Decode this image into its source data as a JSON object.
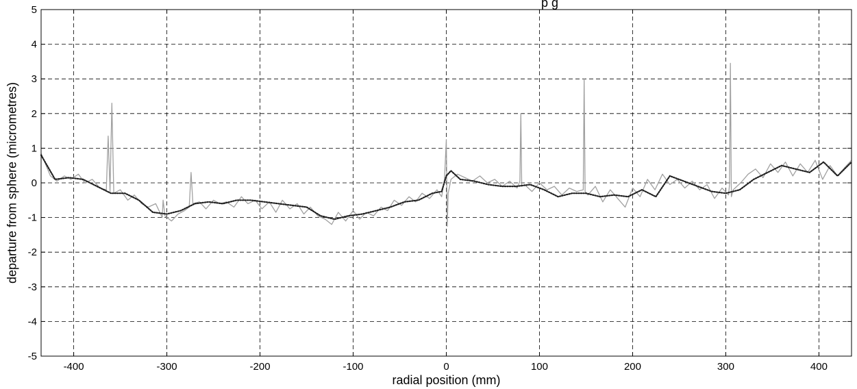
{
  "chart_data": {
    "type": "line",
    "title": "",
    "title_fragment": "p            g",
    "xlabel": "radial position (mm)",
    "ylabel": "departure from sphere (micrometres)",
    "xlim": [
      -435,
      435
    ],
    "ylim": [
      -5,
      5
    ],
    "xticks": [
      -400,
      -300,
      -200,
      -100,
      0,
      100,
      200,
      300,
      400
    ],
    "yticks": [
      -5,
      -4,
      -3,
      -2,
      -1,
      0,
      1,
      2,
      3,
      4,
      5
    ],
    "grid": true,
    "colors": {
      "raw": "#a0a0a0",
      "smoothed": "#202020",
      "grid": "#000000"
    },
    "series": [
      {
        "style": "dotted-dark",
        "x": [
          -435,
          -420,
          -405,
          -390,
          -375,
          -360,
          -345,
          -330,
          -315,
          -300,
          -285,
          -270,
          -255,
          -240,
          -225,
          -210,
          -195,
          -180,
          -165,
          -150,
          -135,
          -120,
          -105,
          -90,
          -75,
          -60,
          -45,
          -30,
          -15,
          -5,
          0,
          5,
          15,
          30,
          45,
          60,
          75,
          90,
          105,
          120,
          135,
          150,
          165,
          180,
          195,
          210,
          225,
          240,
          255,
          270,
          285,
          300,
          315,
          330,
          345,
          360,
          375,
          390,
          405,
          420,
          435
        ],
        "y": [
          0.8,
          0.1,
          0.15,
          0.1,
          -0.1,
          -0.3,
          -0.3,
          -0.5,
          -0.85,
          -0.9,
          -0.8,
          -0.6,
          -0.55,
          -0.6,
          -0.5,
          -0.5,
          -0.55,
          -0.6,
          -0.65,
          -0.7,
          -0.95,
          -1.05,
          -0.95,
          -0.9,
          -0.8,
          -0.7,
          -0.55,
          -0.5,
          -0.3,
          -0.25,
          0.2,
          0.35,
          0.1,
          0.05,
          -0.05,
          -0.1,
          -0.1,
          -0.05,
          -0.2,
          -0.4,
          -0.3,
          -0.3,
          -0.4,
          -0.35,
          -0.4,
          -0.2,
          -0.4,
          0.2,
          0.05,
          -0.1,
          -0.25,
          -0.3,
          -0.2,
          0.1,
          0.3,
          0.5,
          0.4,
          0.3,
          0.6,
          0.2,
          0.6
        ]
      },
      {
        "style": "solid-light",
        "x": [
          -435,
          -425,
          -418,
          -410,
          -403,
          -395,
          -388,
          -380,
          -372,
          -365,
          -363,
          -361,
          -359,
          -357,
          -350,
          -342,
          -335,
          -327,
          -320,
          -312,
          -305,
          -304,
          -302,
          -295,
          -288,
          -281,
          -276,
          -274,
          -272,
          -265,
          -258,
          -250,
          -243,
          -236,
          -228,
          -220,
          -213,
          -205,
          -198,
          -190,
          -183,
          -176,
          -168,
          -160,
          -153,
          -146,
          -138,
          -130,
          -123,
          -116,
          -108,
          -100,
          -93,
          -86,
          -78,
          -70,
          -63,
          -56,
          -48,
          -40,
          -33,
          -26,
          -18,
          -10,
          -5,
          -2,
          0,
          1,
          2,
          5,
          12,
          20,
          28,
          36,
          44,
          52,
          60,
          68,
          76,
          79,
          80,
          81,
          84,
          92,
          100,
          108,
          116,
          124,
          132,
          140,
          147,
          148,
          149,
          152,
          160,
          168,
          176,
          184,
          192,
          200,
          208,
          216,
          224,
          232,
          240,
          248,
          256,
          264,
          272,
          280,
          288,
          296,
          303,
          304,
          305,
          306,
          308,
          316,
          324,
          332,
          340,
          348,
          356,
          364,
          372,
          380,
          388,
          396,
          404,
          412,
          420,
          428,
          435
        ],
        "y": [
          0.85,
          0.2,
          0.05,
          0.2,
          0.1,
          0.25,
          0.0,
          0.1,
          -0.15,
          -0.2,
          1.35,
          -0.25,
          2.3,
          -0.3,
          -0.2,
          -0.5,
          -0.35,
          -0.6,
          -0.7,
          -0.6,
          -1.0,
          -0.5,
          -0.95,
          -1.1,
          -0.9,
          -0.8,
          -0.7,
          0.3,
          -0.6,
          -0.55,
          -0.75,
          -0.5,
          -0.6,
          -0.55,
          -0.7,
          -0.4,
          -0.6,
          -0.5,
          -0.75,
          -0.55,
          -0.85,
          -0.5,
          -0.75,
          -0.6,
          -0.9,
          -0.7,
          -0.95,
          -1.05,
          -1.2,
          -0.85,
          -1.1,
          -0.8,
          -1.05,
          -0.85,
          -0.95,
          -0.7,
          -0.8,
          -0.5,
          -0.65,
          -0.4,
          -0.55,
          -0.3,
          -0.45,
          -0.2,
          -0.4,
          0.1,
          1.25,
          -1.25,
          -0.3,
          0.1,
          0.25,
          0.15,
          0.05,
          0.2,
          0.0,
          0.1,
          -0.1,
          0.05,
          -0.15,
          0.05,
          2.0,
          -0.1,
          -0.05,
          -0.25,
          0.0,
          -0.2,
          -0.1,
          -0.35,
          -0.15,
          -0.25,
          -0.2,
          3.0,
          -0.25,
          -0.35,
          -0.1,
          -0.55,
          -0.2,
          -0.45,
          -0.7,
          -0.15,
          -0.4,
          0.1,
          -0.2,
          0.25,
          -0.05,
          0.1,
          -0.15,
          0.05,
          -0.2,
          -0.05,
          -0.45,
          -0.15,
          -0.35,
          -0.05,
          3.45,
          -0.4,
          -0.2,
          0.0,
          0.25,
          0.4,
          0.15,
          0.55,
          0.3,
          0.6,
          0.2,
          0.55,
          0.3,
          0.65,
          0.1,
          0.5,
          0.2,
          0.45,
          0.65
        ]
      }
    ]
  }
}
